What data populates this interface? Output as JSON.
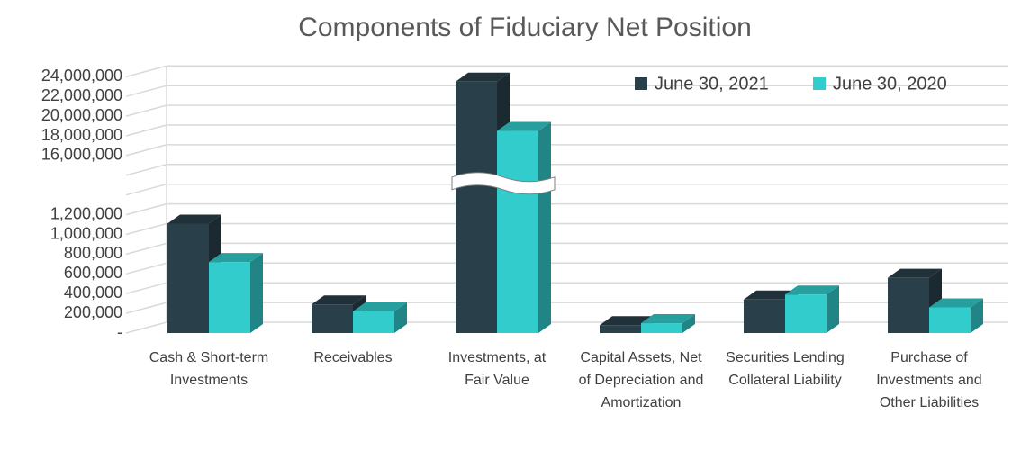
{
  "chart_data": {
    "type": "bar",
    "title": "Components of Fiduciary Net Position",
    "categories": [
      "Cash & Short-term Investments",
      "Receivables",
      "Investments, at Fair Value",
      "Capital Assets, Net of Depreciation and Amortization",
      "Securities Lending Collateral Liability",
      "Purchase of Investments and Other Liabilities"
    ],
    "series": [
      {
        "name": "June 30, 2021",
        "color": "#293f4a",
        "values": [
          1110000,
          290000,
          23500000,
          80000,
          340000,
          560000
        ]
      },
      {
        "name": "June 30, 2020",
        "color": "#33cccc",
        "values": [
          720000,
          220000,
          18500000,
          100000,
          390000,
          260000
        ]
      }
    ],
    "ylim": [
      0,
      24000000
    ],
    "yticks": [
      {
        "value": 0,
        "label": "-"
      },
      {
        "value": 200000,
        "label": "200,000"
      },
      {
        "value": 400000,
        "label": "400,000"
      },
      {
        "value": 600000,
        "label": "600,000"
      },
      {
        "value": 800000,
        "label": "800,000"
      },
      {
        "value": 1000000,
        "label": "1,000,000"
      },
      {
        "value": 1200000,
        "label": "1,200,000"
      },
      {
        "value": 16000000,
        "label": "16,000,000"
      },
      {
        "value": 18000000,
        "label": "18,000,000"
      },
      {
        "value": 20000000,
        "label": "20,000,000"
      },
      {
        "value": 22000000,
        "label": "22,000,000"
      },
      {
        "value": 24000000,
        "label": "24,000,000"
      }
    ],
    "axis_break": [
      1200000,
      16000000
    ],
    "grid": true,
    "legend": "top-right"
  }
}
